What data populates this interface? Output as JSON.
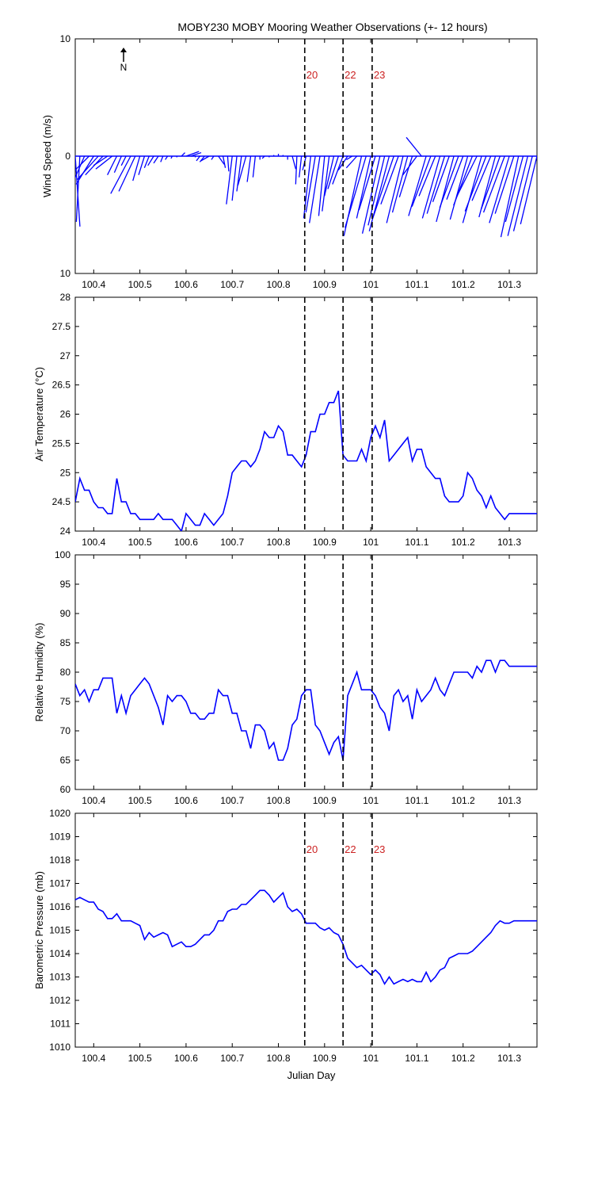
{
  "title": "MOBY230 MOBY Mooring Weather Observations (+- 12 hours)",
  "x_label": "Julian Day",
  "north_label": "N",
  "colors": {
    "series": "#0000ff",
    "marker_text": "#cc2222",
    "axes": "#000000"
  },
  "x_range": [
    100.36,
    101.36
  ],
  "x_ticks": [
    "100.4",
    "100.5",
    "100.6",
    "100.7",
    "100.8",
    "100.9",
    "101",
    "101.1",
    "101.2",
    "101.3"
  ],
  "event_lines": [
    {
      "label": "20",
      "x": 100.857
    },
    {
      "label": "22",
      "x": 100.94
    },
    {
      "label": "23",
      "x": 101.003
    }
  ],
  "chart_data": [
    {
      "type": "vector",
      "name": "wind",
      "ylabel": "Wind Speed (m/s)",
      "ylim": [
        -10,
        10
      ],
      "y_tick_labels": [
        "10",
        "0",
        "10"
      ],
      "event_labels_shown": true,
      "x_start": 100.36,
      "x_step": 0.01,
      "u": [
        0.4,
        -0.3,
        -2.0,
        -3.2,
        -1.5,
        -1.8,
        -1.5,
        -1.2,
        -1.4,
        -0.8,
        -0.6,
        -0.4,
        -1.7,
        -1.4,
        -0.6,
        -0.5,
        -0.4,
        -0.5,
        -0.4,
        -0.2,
        -0.2,
        -0.1,
        0.0,
        0.3,
        1.1,
        0.9,
        0.0,
        -0.3,
        -0.4,
        -0.7,
        -0.2,
        0.5,
        0.2,
        0.1,
        -0.5,
        -0.4,
        -0.4,
        -0.7,
        -0.3,
        -0.2,
        0.0,
        -0.2,
        0.0,
        0.0,
        0.0,
        0.0,
        0.0,
        0.3,
        -0.1,
        -0.2,
        -0.3,
        -0.6,
        -0.8,
        -0.9,
        -0.5,
        -0.6,
        -0.8,
        -0.9,
        -0.9,
        -0.8,
        -0.5,
        -0.9,
        -1.5,
        -1.8,
        -1.2,
        -1.4,
        -1.5,
        -1.4,
        -1.7,
        -1.8,
        -1.5,
        -1.4,
        -1.3,
        -1.1,
        -1.2,
        -1.3,
        -1.5,
        -1.6,
        -1.4,
        -1.5,
        -1.5,
        -1.4,
        -1.5,
        -1.6,
        -1.4,
        -1.5,
        -1.6,
        -1.7,
        -1.6,
        -1.8,
        -1.6,
        -1.4,
        -1.6,
        -1.8,
        -1.7,
        -1.6,
        -1.5,
        -1.5,
        -1.7,
        -1.6,
        -1.4
      ],
      "v": [
        -6.0,
        -5.6,
        -4.6,
        -3.2,
        -2.4,
        -2.0,
        -1.6,
        -0.8,
        -1.1,
        -1.6,
        -1.4,
        -0.8,
        -3.2,
        -3.0,
        -2.1,
        -1.6,
        -1.0,
        -0.8,
        -0.6,
        -0.5,
        -0.3,
        -0.2,
        -0.1,
        0.3,
        0.4,
        0.3,
        -0.1,
        -0.4,
        -0.5,
        -0.4,
        -0.3,
        -0.7,
        -1.0,
        -1.3,
        -4.1,
        -3.8,
        -3.0,
        -2.5,
        -2.2,
        -1.8,
        -0.3,
        -0.2,
        -0.1,
        0.1,
        0.2,
        0.1,
        -0.3,
        -1.1,
        -2.4,
        -1.8,
        -1.2,
        -5.3,
        -4.8,
        -5.7,
        -5.1,
        -4.7,
        -3.4,
        -2.8,
        -2.4,
        -1.2,
        -0.3,
        -1.0,
        -6.8,
        -6.1,
        -5.3,
        -4.6,
        -6.6,
        -5.9,
        -6.4,
        -5.3,
        -4.1,
        -5.7,
        -4.8,
        -3.5,
        -1.6,
        1.6,
        -5.1,
        -4.3,
        -3.4,
        -5.3,
        -4.9,
        -3.9,
        -5.6,
        -4.4,
        -3.7,
        -5.4,
        -4.2,
        -3.4,
        -5.7,
        -4.7,
        -3.8,
        -5.2,
        -4.5,
        -4.8,
        -5.7,
        -4.9,
        -6.9,
        -5.6,
        -6.8,
        -6.4,
        -5.8
      ]
    },
    {
      "type": "line",
      "name": "air-temperature",
      "ylabel": "Air Temperature (°C)",
      "ylim": [
        24,
        28
      ],
      "y_ticks": [
        24,
        24.5,
        25,
        25.5,
        26,
        26.5,
        27,
        27.5,
        28
      ],
      "y_tick_labels": [
        "24",
        "24.5",
        "25",
        "25.5",
        "26",
        "26.5",
        "27",
        "27.5",
        "28"
      ],
      "event_labels_shown": false,
      "x": [
        100.36,
        100.37,
        100.38,
        100.39,
        100.4,
        100.41,
        100.42,
        100.43,
        100.44,
        100.45,
        100.46,
        100.47,
        100.48,
        100.49,
        100.5,
        100.51,
        100.52,
        100.53,
        100.54,
        100.55,
        100.56,
        100.57,
        100.58,
        100.59,
        100.6,
        100.61,
        100.62,
        100.63,
        100.64,
        100.65,
        100.66,
        100.67,
        100.68,
        100.69,
        100.7,
        100.71,
        100.72,
        100.73,
        100.74,
        100.75,
        100.76,
        100.77,
        100.78,
        100.79,
        100.8,
        100.81,
        100.82,
        100.83,
        100.84,
        100.85,
        100.86,
        100.87,
        100.88,
        100.89,
        100.9,
        100.91,
        100.92,
        100.93,
        100.94,
        100.95,
        100.96,
        100.97,
        100.98,
        100.99,
        101.0,
        101.01,
        101.02,
        101.03,
        101.04,
        101.05,
        101.06,
        101.07,
        101.08,
        101.09,
        101.1,
        101.11,
        101.12,
        101.13,
        101.14,
        101.15,
        101.16,
        101.17,
        101.18,
        101.19,
        101.2,
        101.21,
        101.22,
        101.23,
        101.24,
        101.25,
        101.26,
        101.27,
        101.28,
        101.29,
        101.3,
        101.31,
        101.32,
        101.33,
        101.34,
        101.35,
        101.36
      ],
      "y": [
        24.5,
        24.9,
        24.7,
        24.7,
        24.5,
        24.4,
        24.4,
        24.3,
        24.3,
        24.9,
        24.5,
        24.5,
        24.3,
        24.3,
        24.2,
        24.2,
        24.2,
        24.2,
        24.3,
        24.2,
        24.2,
        24.2,
        24.1,
        24.0,
        24.3,
        24.2,
        24.1,
        24.1,
        24.3,
        24.2,
        24.1,
        24.2,
        24.3,
        24.6,
        25.0,
        25.1,
        25.2,
        25.2,
        25.1,
        25.2,
        25.4,
        25.7,
        25.6,
        25.6,
        25.8,
        25.7,
        25.3,
        25.3,
        25.2,
        25.1,
        25.3,
        25.7,
        25.7,
        26.0,
        26.0,
        26.2,
        26.2,
        26.4,
        25.3,
        25.2,
        25.2,
        25.2,
        25.4,
        25.2,
        25.6,
        25.8,
        25.6,
        25.9,
        25.2,
        25.3,
        25.4,
        25.5,
        25.6,
        25.2,
        25.4,
        25.4,
        25.1,
        25.0,
        24.9,
        24.9,
        24.6,
        24.5,
        24.5,
        24.5,
        24.6,
        25.0,
        24.9,
        24.7,
        24.6,
        24.4,
        24.6,
        24.4,
        24.3,
        24.2,
        24.3,
        24.3,
        24.3,
        24.3,
        24.3,
        24.3,
        24.3
      ]
    },
    {
      "type": "line",
      "name": "relative-humidity",
      "ylabel": "Relative Humidity (%)",
      "ylim": [
        60,
        100
      ],
      "y_ticks": [
        60,
        65,
        70,
        75,
        80,
        85,
        90,
        95,
        100
      ],
      "y_tick_labels": [
        "60",
        "65",
        "70",
        "75",
        "80",
        "85",
        "90",
        "95",
        "100"
      ],
      "event_labels_shown": false,
      "x": [
        100.36,
        100.37,
        100.38,
        100.39,
        100.4,
        100.41,
        100.42,
        100.43,
        100.44,
        100.45,
        100.46,
        100.47,
        100.48,
        100.49,
        100.5,
        100.51,
        100.52,
        100.53,
        100.54,
        100.55,
        100.56,
        100.57,
        100.58,
        100.59,
        100.6,
        100.61,
        100.62,
        100.63,
        100.64,
        100.65,
        100.66,
        100.67,
        100.68,
        100.69,
        100.7,
        100.71,
        100.72,
        100.73,
        100.74,
        100.75,
        100.76,
        100.77,
        100.78,
        100.79,
        100.8,
        100.81,
        100.82,
        100.83,
        100.84,
        100.85,
        100.86,
        100.87,
        100.88,
        100.89,
        100.9,
        100.91,
        100.92,
        100.93,
        100.94,
        100.95,
        100.96,
        100.97,
        100.98,
        100.99,
        101.0,
        101.01,
        101.02,
        101.03,
        101.04,
        101.05,
        101.06,
        101.07,
        101.08,
        101.09,
        101.1,
        101.11,
        101.12,
        101.13,
        101.14,
        101.15,
        101.16,
        101.17,
        101.18,
        101.19,
        101.2,
        101.21,
        101.22,
        101.23,
        101.24,
        101.25,
        101.26,
        101.27,
        101.28,
        101.29,
        101.3,
        101.31,
        101.32,
        101.33,
        101.34,
        101.35,
        101.36
      ],
      "y": [
        78,
        76,
        77,
        75,
        77,
        77,
        79,
        79,
        79,
        73,
        76,
        73,
        76,
        77,
        78,
        79,
        78,
        76,
        74,
        71,
        76,
        75,
        76,
        76,
        75,
        73,
        73,
        72,
        72,
        73,
        73,
        77,
        76,
        76,
        73,
        73,
        70,
        70,
        67,
        71,
        71,
        70,
        67,
        68,
        65,
        65,
        67,
        71,
        72,
        76,
        77,
        77,
        71,
        70,
        68,
        66,
        68,
        69,
        65,
        76,
        78,
        80,
        77,
        77,
        77,
        76,
        74,
        73,
        70,
        76,
        77,
        75,
        76,
        72,
        77,
        75,
        76,
        77,
        79,
        77,
        76,
        78,
        80,
        80,
        80,
        80,
        79,
        81,
        80,
        82,
        82,
        80,
        82,
        82,
        81,
        81,
        81,
        81,
        81,
        81,
        81
      ]
    },
    {
      "type": "line",
      "name": "barometric-pressure",
      "ylabel": "Barometric Pressure (mb)",
      "ylim": [
        1010,
        1020
      ],
      "y_ticks": [
        1010,
        1011,
        1012,
        1013,
        1014,
        1015,
        1016,
        1017,
        1018,
        1019,
        1020
      ],
      "y_tick_labels": [
        "1010",
        "1011",
        "1012",
        "1013",
        "1014",
        "1015",
        "1016",
        "1017",
        "1018",
        "1019",
        "1020"
      ],
      "event_labels_shown": true,
      "x": [
        100.36,
        100.37,
        100.38,
        100.39,
        100.4,
        100.41,
        100.42,
        100.43,
        100.44,
        100.45,
        100.46,
        100.47,
        100.48,
        100.49,
        100.5,
        100.51,
        100.52,
        100.53,
        100.54,
        100.55,
        100.56,
        100.57,
        100.58,
        100.59,
        100.6,
        100.61,
        100.62,
        100.63,
        100.64,
        100.65,
        100.66,
        100.67,
        100.68,
        100.69,
        100.7,
        100.71,
        100.72,
        100.73,
        100.74,
        100.75,
        100.76,
        100.77,
        100.78,
        100.79,
        100.8,
        100.81,
        100.82,
        100.83,
        100.84,
        100.85,
        100.86,
        100.87,
        100.88,
        100.89,
        100.9,
        100.91,
        100.92,
        100.93,
        100.94,
        100.95,
        100.96,
        100.97,
        100.98,
        100.99,
        101.0,
        101.01,
        101.02,
        101.03,
        101.04,
        101.05,
        101.06,
        101.07,
        101.08,
        101.09,
        101.1,
        101.11,
        101.12,
        101.13,
        101.14,
        101.15,
        101.16,
        101.17,
        101.18,
        101.19,
        101.2,
        101.21,
        101.22,
        101.23,
        101.24,
        101.25,
        101.26,
        101.27,
        101.28,
        101.29,
        101.3,
        101.31,
        101.32,
        101.33,
        101.34,
        101.35,
        101.36
      ],
      "y": [
        1016.3,
        1016.4,
        1016.3,
        1016.2,
        1016.2,
        1015.9,
        1015.8,
        1015.5,
        1015.5,
        1015.7,
        1015.4,
        1015.4,
        1015.4,
        1015.3,
        1015.2,
        1014.6,
        1014.9,
        1014.7,
        1014.8,
        1014.9,
        1014.8,
        1014.3,
        1014.4,
        1014.5,
        1014.3,
        1014.3,
        1014.4,
        1014.6,
        1014.8,
        1014.8,
        1015.0,
        1015.4,
        1015.4,
        1015.8,
        1015.9,
        1015.9,
        1016.1,
        1016.1,
        1016.3,
        1016.5,
        1016.7,
        1016.7,
        1016.5,
        1016.2,
        1016.4,
        1016.6,
        1016.0,
        1015.8,
        1015.9,
        1015.7,
        1015.3,
        1015.3,
        1015.3,
        1015.1,
        1015.0,
        1015.1,
        1014.9,
        1014.8,
        1014.4,
        1013.8,
        1013.6,
        1013.4,
        1013.5,
        1013.3,
        1013.1,
        1013.3,
        1013.1,
        1012.7,
        1013.0,
        1012.7,
        1012.8,
        1012.9,
        1012.8,
        1012.9,
        1012.8,
        1012.8,
        1013.2,
        1012.8,
        1013.0,
        1013.3,
        1013.4,
        1013.8,
        1013.9,
        1014.0,
        1014.0,
        1014.0,
        1014.1,
        1014.3,
        1014.5,
        1014.7,
        1014.9,
        1015.2,
        1015.4,
        1015.3,
        1015.3,
        1015.4,
        1015.4,
        1015.4,
        1015.4,
        1015.4,
        1015.4
      ]
    }
  ]
}
